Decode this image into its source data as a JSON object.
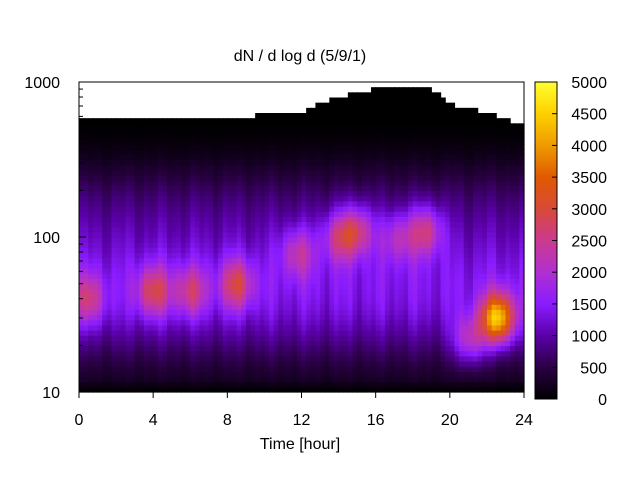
{
  "chart_data": {
    "type": "heatmap",
    "title": "dN / d log d (5/9/1)",
    "xlabel": "Time [hour]",
    "ylabel": "",
    "x_range": [
      0,
      24
    ],
    "y_range": [
      10,
      1000
    ],
    "y_scale": "log",
    "x_ticks": [
      "0",
      "4",
      "8",
      "12",
      "16",
      "20",
      "24"
    ],
    "y_ticks": [
      "10",
      "100",
      "1000"
    ],
    "colorbar": {
      "range": [
        0,
        5000
      ],
      "ticks": [
        "0",
        "500",
        "1000",
        "1500",
        "2000",
        "2500",
        "3000",
        "3500",
        "4000",
        "4500",
        "5000"
      ],
      "palette": [
        "#000000",
        "#2a0044",
        "#5a00a8",
        "#8a1cff",
        "#b030d0",
        "#cc3a90",
        "#d84a38",
        "#e05a00",
        "#ee9a00",
        "#ffd000",
        "#ffff30"
      ]
    },
    "grid": false,
    "intensity_hotspots": [
      {
        "time_h": 0.5,
        "diameter": 40,
        "value": 2700
      },
      {
        "time_h": 4.0,
        "diameter": 45,
        "value": 3000
      },
      {
        "time_h": 6.0,
        "diameter": 45,
        "value": 2700
      },
      {
        "time_h": 8.5,
        "diameter": 50,
        "value": 3000
      },
      {
        "time_h": 11.8,
        "diameter": 80,
        "value": 2600
      },
      {
        "time_h": 14.0,
        "diameter": 100,
        "value": 2700
      },
      {
        "time_h": 15.0,
        "diameter": 110,
        "value": 3000
      },
      {
        "time_h": 17.2,
        "diameter": 100,
        "value": 2500
      },
      {
        "time_h": 18.7,
        "diameter": 110,
        "value": 3000
      },
      {
        "time_h": 21.1,
        "diameter": 22,
        "value": 2800
      },
      {
        "time_h": 22.6,
        "diameter": 30,
        "value": 4800
      }
    ],
    "upper_data_limit_diameter": [
      {
        "time_h": 0,
        "diameter": 600
      },
      {
        "time_h": 4,
        "diameter": 580
      },
      {
        "time_h": 9,
        "diameter": 600
      },
      {
        "time_h": 12,
        "diameter": 640
      },
      {
        "time_h": 14,
        "diameter": 800
      },
      {
        "time_h": 16,
        "diameter": 900
      },
      {
        "time_h": 19,
        "diameter": 900
      },
      {
        "time_h": 20,
        "diameter": 720
      },
      {
        "time_h": 22,
        "diameter": 640
      },
      {
        "time_h": 24,
        "diameter": 520
      }
    ]
  }
}
